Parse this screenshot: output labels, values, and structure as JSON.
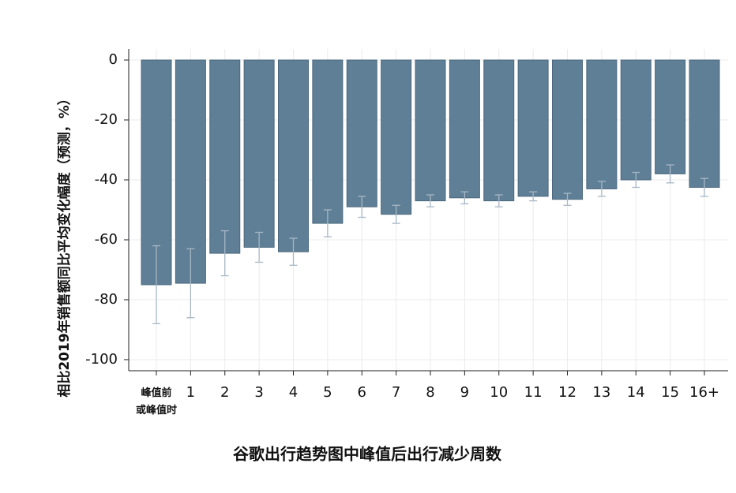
{
  "chart_data": {
    "type": "bar",
    "y_label": "相比2019年销售额同比平均变化幅度（预测，%）",
    "x_label": "谷歌出行趋势图中峰值后出行减少周数",
    "categories": [
      "峰值前\n或峰值时",
      "1",
      "2",
      "3",
      "4",
      "5",
      "6",
      "7",
      "8",
      "9",
      "10",
      "11",
      "12",
      "13",
      "14",
      "15",
      "16+"
    ],
    "values": [
      -75,
      -74.5,
      -64.5,
      -62.5,
      -64,
      -54.5,
      -49,
      -51.5,
      -47,
      -46,
      -47,
      -45.5,
      -46.5,
      -43,
      -40,
      -38,
      -42.5
    ],
    "errors": [
      13,
      11.5,
      7.5,
      5,
      4.5,
      4.5,
      3.5,
      3,
      2,
      2,
      2,
      1.5,
      2,
      2.5,
      2.5,
      3,
      3
    ],
    "color": "#5f7f96",
    "error_color": "#a7b7c5",
    "ylim": [
      -103.7,
      3.7
    ],
    "yticks": [
      0,
      -20,
      -40,
      -60,
      -80,
      -100
    ],
    "grid": true
  }
}
